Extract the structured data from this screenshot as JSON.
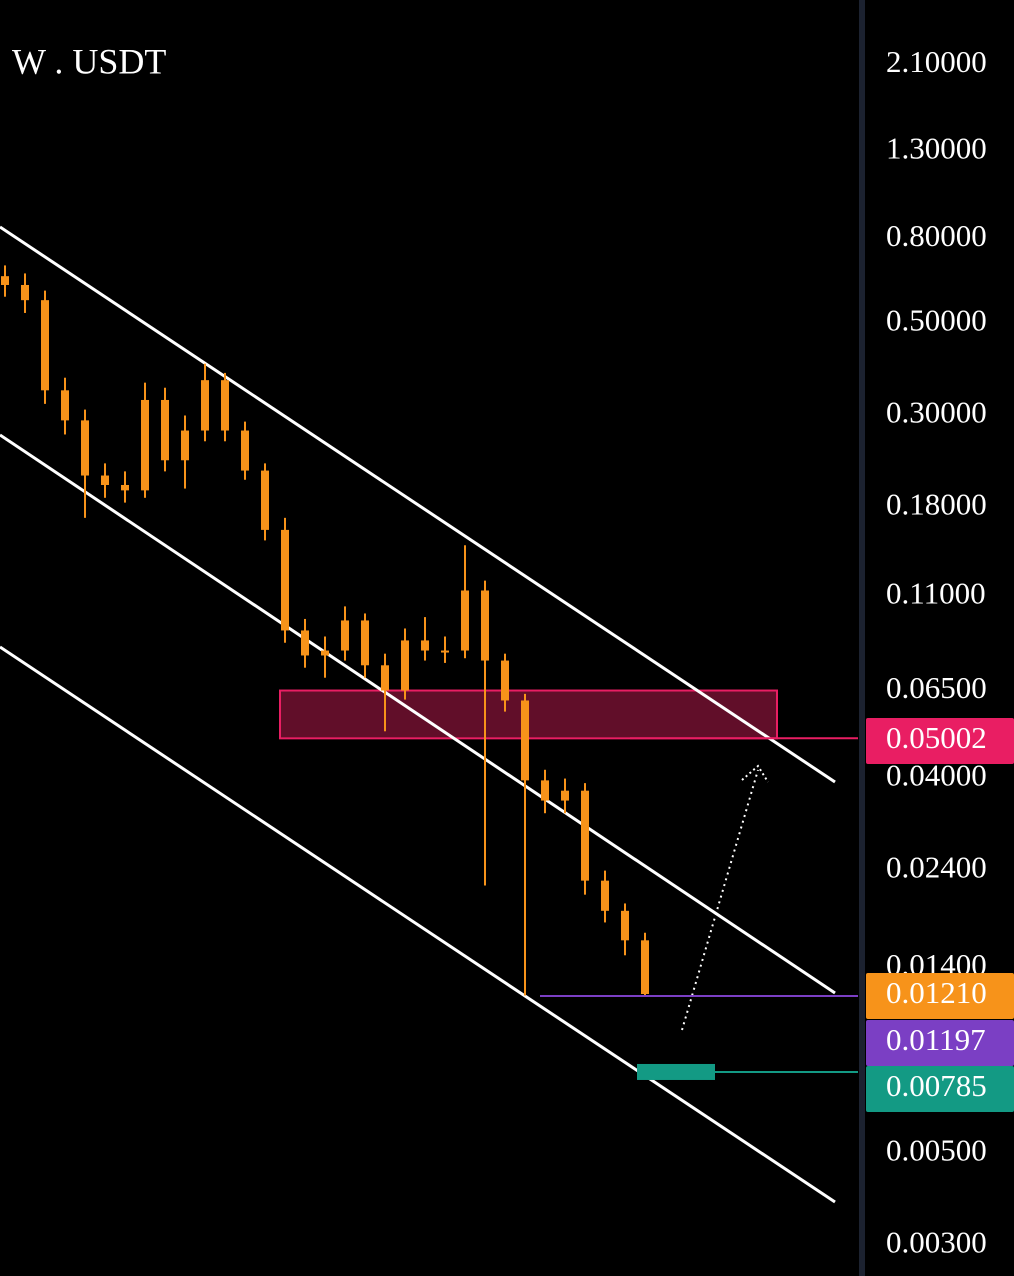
{
  "chart_data": {
    "type": "candlestick",
    "title": "W . USDT",
    "color": "#f7931a",
    "log_scale": true,
    "ylim": [
      0.00253,
      3.01
    ],
    "yticks": [
      {
        "value": 2.1,
        "label": "2.10000"
      },
      {
        "value": 1.3,
        "label": "1.30000"
      },
      {
        "value": 0.8,
        "label": "0.80000"
      },
      {
        "value": 0.5,
        "label": "0.50000"
      },
      {
        "value": 0.3,
        "label": "0.30000"
      },
      {
        "value": 0.18,
        "label": "0.18000"
      },
      {
        "value": 0.11,
        "label": "0.11000"
      },
      {
        "value": 0.065,
        "label": "0.06500"
      },
      {
        "value": 0.04,
        "label": "0.04000"
      },
      {
        "value": 0.024,
        "label": "0.02400"
      },
      {
        "value": 0.014,
        "label": "0.01400"
      },
      {
        "value": 0.005,
        "label": "0.00500"
      },
      {
        "value": 0.003,
        "label": "0.00300"
      }
    ],
    "open": [
      0.65,
      0.619,
      0.569,
      0.345,
      0.292,
      0.215,
      0.204,
      0.198,
      0.327,
      0.234,
      0.276,
      0.365,
      0.276,
      0.221,
      0.159,
      0.091,
      0.0792,
      0.0814,
      0.0962,
      0.075,
      0.0652,
      0.0861,
      0.0814,
      0.0814,
      0.1136,
      0.077,
      0.0617,
      0.0396,
      0.0354,
      0.0374,
      0.0227,
      0.0192,
      0.0163
    ],
    "high": [
      0.69,
      0.66,
      0.6,
      0.37,
      0.31,
      0.23,
      0.22,
      0.36,
      0.35,
      0.3,
      0.4,
      0.38,
      0.29,
      0.23,
      0.17,
      0.097,
      0.088,
      0.104,
      0.1,
      0.08,
      0.092,
      0.098,
      0.088,
      0.146,
      0.12,
      0.08,
      0.064,
      0.042,
      0.04,
      0.039,
      0.024,
      0.02,
      0.017
    ],
    "low": [
      0.58,
      0.53,
      0.32,
      0.27,
      0.17,
      0.19,
      0.185,
      0.19,
      0.22,
      0.2,
      0.26,
      0.26,
      0.21,
      0.15,
      0.085,
      0.074,
      0.07,
      0.077,
      0.07,
      0.052,
      0.062,
      0.077,
      0.076,
      0.078,
      0.0221,
      0.058,
      0.012,
      0.033,
      0.033,
      0.021,
      0.018,
      0.015,
      0.0119
    ],
    "close": [
      0.619,
      0.569,
      0.345,
      0.292,
      0.215,
      0.204,
      0.198,
      0.327,
      0.234,
      0.276,
      0.365,
      0.276,
      0.221,
      0.159,
      0.091,
      0.0792,
      0.0814,
      0.0962,
      0.075,
      0.0652,
      0.0861,
      0.0814,
      0.0814,
      0.1136,
      0.077,
      0.0617,
      0.0396,
      0.0354,
      0.0374,
      0.0227,
      0.0192,
      0.0163,
      0.0121
    ],
    "zone": {
      "low": 0.05,
      "high": 0.0652,
      "color": "#6b0f2e"
    },
    "levels": [
      {
        "value": 0.05002,
        "label": "0.05002",
        "color": "#e91e63"
      },
      {
        "value": 0.0121,
        "label": "0.01210",
        "color": "#f7931a"
      },
      {
        "value": 0.01197,
        "label": "0.01197",
        "color": "#7b3fc4"
      },
      {
        "value": 0.00785,
        "label": "0.00785",
        "color": "#139a84"
      }
    ]
  }
}
